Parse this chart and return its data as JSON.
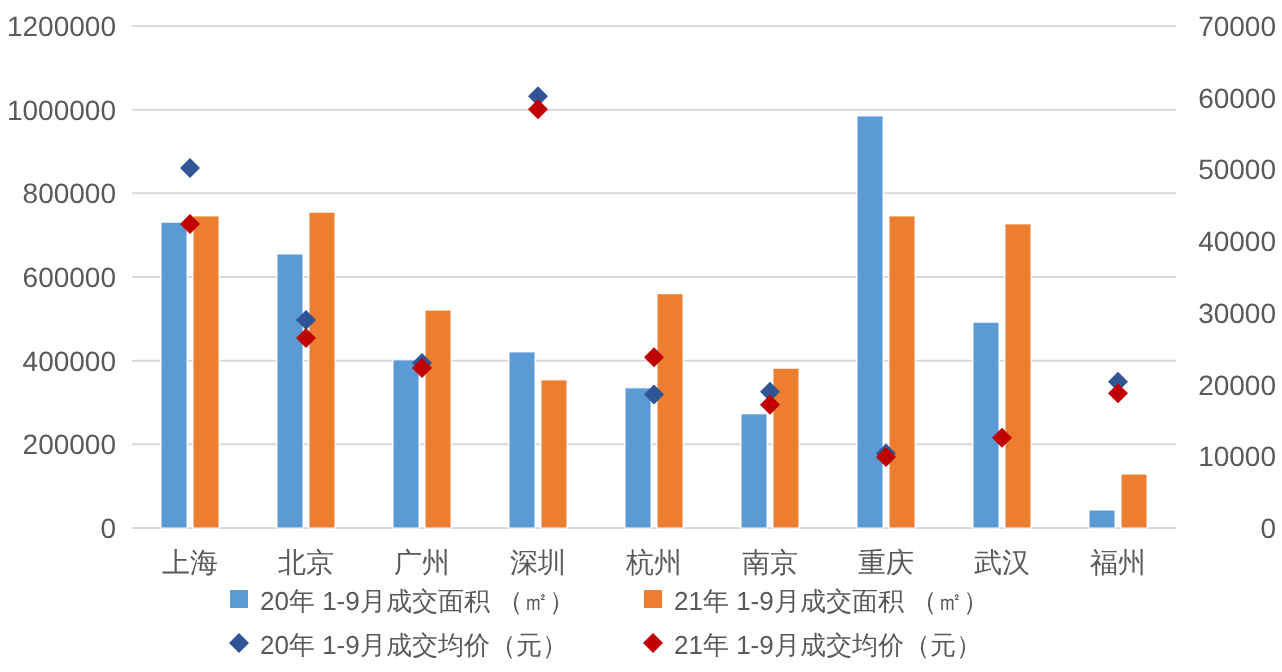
{
  "chart_data": {
    "type": "bar",
    "categories": [
      "上海",
      "北京",
      "广州",
      "深圳",
      "杭州",
      "南京",
      "重庆",
      "武汉",
      "福州"
    ],
    "series": [
      {
        "name": "20年 1-9月成交面积 （㎡）",
        "color": "#5b9bd5",
        "values": [
          731000,
          655000,
          402000,
          421000,
          335000,
          273000,
          985000,
          492000,
          43000
        ]
      },
      {
        "name": "21年 1-9月成交面积 （㎡）",
        "color": "#ed7d31",
        "values": [
          746000,
          755000,
          521000,
          354000,
          560000,
          382000,
          746000,
          727000,
          129000
        ]
      },
      {
        "name": "20年 1-9月成交均价（元）",
        "type": "scatter",
        "axis": "y2",
        "marker": "diamond",
        "color": "#2f5597",
        "values": [
          50200,
          29000,
          23000,
          60200,
          18600,
          19000,
          10400,
          null,
          20400
        ]
      },
      {
        "name": "21年 1-9月成交均价（元）",
        "type": "scatter",
        "axis": "y2",
        "marker": "diamond",
        "color": "#c00000",
        "values": [
          42400,
          26500,
          22300,
          58400,
          23800,
          17200,
          9900,
          12600,
          18800
        ]
      }
    ],
    "ylim": [
      0,
      1200000
    ],
    "yticks": [
      0,
      200000,
      400000,
      600000,
      800000,
      1000000,
      1200000
    ],
    "y2lim": [
      0,
      70000
    ],
    "y2ticks": [
      0,
      10000,
      20000,
      30000,
      40000,
      50000,
      60000,
      70000
    ],
    "grid": "y",
    "legend": "bottom"
  }
}
